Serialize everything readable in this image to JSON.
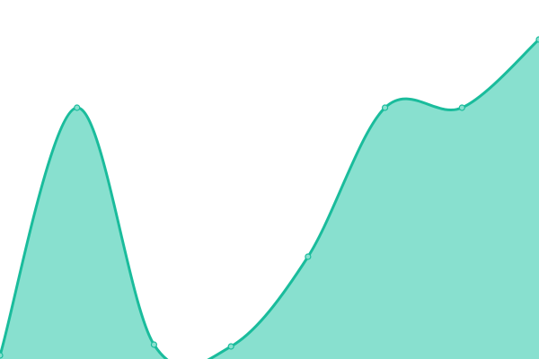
{
  "chart_data": {
    "type": "area",
    "curve": "smooth",
    "x": [
      0,
      1,
      2,
      3,
      4,
      5,
      6,
      7
    ],
    "values": [
      1,
      70,
      4,
      3.5,
      28.5,
      70,
      70,
      89
    ],
    "ylim": [
      0,
      100
    ],
    "xlim": [
      0,
      7
    ],
    "grid": false,
    "axes_visible": false,
    "legend": "none",
    "title": "",
    "xlabel": "",
    "ylabel": "",
    "colors": {
      "line": "#1abc9c",
      "fill": "#88e0cf",
      "marker_fill": "#88e0cf",
      "marker_stroke": "#1abc9c"
    }
  }
}
